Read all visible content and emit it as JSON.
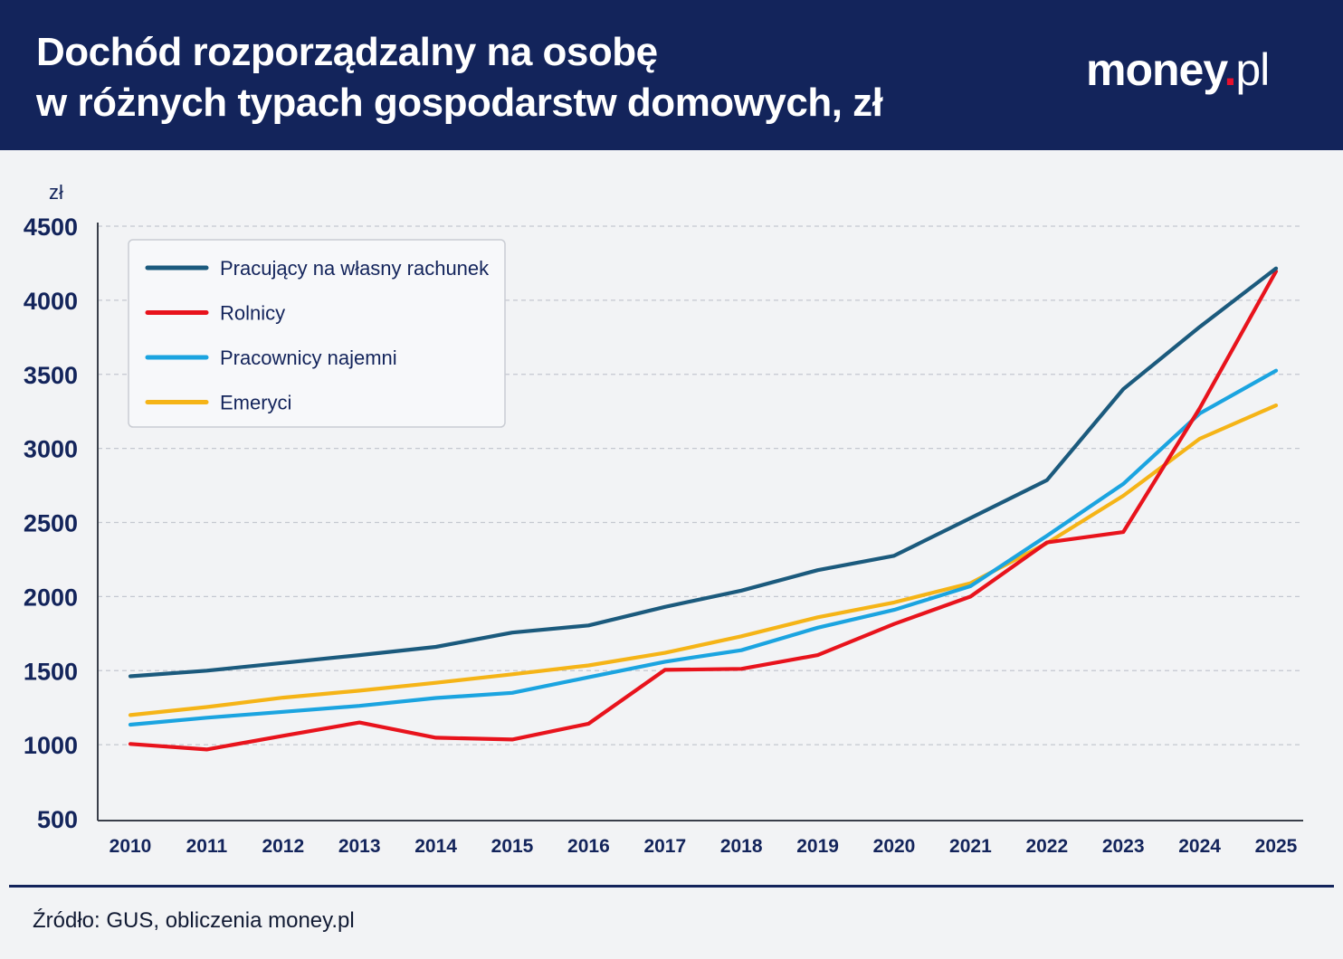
{
  "header": {
    "title_line1": "Dochód rozporządzalny na osobę",
    "title_line2": "w różnych typach gospodarstw domowych, zł",
    "brand": {
      "name": "money",
      "dot": ".",
      "tld": "pl",
      "dot_color": "#e8112d"
    },
    "background": "#13245b"
  },
  "chart_data": {
    "type": "line",
    "title": "Dochód rozporządzalny na osobę w różnych typach gospodarstw domowych, zł",
    "ylabel": "zł",
    "xlabel": "",
    "x": [
      2010,
      2011,
      2012,
      2013,
      2014,
      2015,
      2016,
      2017,
      2018,
      2019,
      2020,
      2021,
      2022,
      2023,
      2024,
      2025
    ],
    "ylim": [
      500,
      4500
    ],
    "yticks": [
      500,
      1000,
      1500,
      2000,
      2500,
      3000,
      3500,
      4000,
      4500
    ],
    "grid": "horizontal-dashed",
    "legend_position": "top-left",
    "series": [
      {
        "name": "Pracujący na własny rachunek",
        "color": "#1b5a7d",
        "values": [
          1462,
          1500,
          1552,
          1605,
          1660,
          1757,
          1805,
          1930,
          2040,
          2178,
          2275,
          2530,
          2785,
          3400,
          3820,
          4215
        ]
      },
      {
        "name": "Rolnicy",
        "color": "#e8131c",
        "values": [
          1005,
          968,
          1060,
          1150,
          1047,
          1035,
          1142,
          1505,
          1512,
          1605,
          1815,
          2000,
          2365,
          2435,
          3270,
          4195
        ]
      },
      {
        "name": "Pracownicy najemni",
        "color": "#1ba4e0",
        "values": [
          1135,
          1182,
          1222,
          1262,
          1315,
          1350,
          1455,
          1560,
          1638,
          1790,
          1910,
          2070,
          2410,
          2760,
          3235,
          3525
        ]
      },
      {
        "name": "Emeryci",
        "color": "#f5b417",
        "values": [
          1200,
          1254,
          1318,
          1365,
          1418,
          1475,
          1535,
          1620,
          1732,
          1860,
          1960,
          2090,
          2360,
          2680,
          3065,
          3290
        ]
      }
    ]
  },
  "footer": {
    "source": "Źródło: GUS, obliczenia money.pl"
  }
}
